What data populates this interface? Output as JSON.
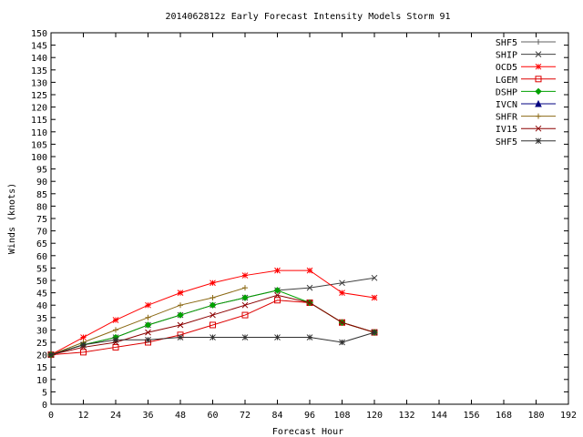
{
  "chart_data": {
    "type": "line",
    "title": "2014062812z Early Forecast Intensity Models Storm 91",
    "xlabel": "Forecast Hour",
    "ylabel": "Winds (knots)",
    "xlim": [
      0,
      192
    ],
    "ylim": [
      0,
      150
    ],
    "x_ticks": [
      0,
      12,
      24,
      36,
      48,
      60,
      72,
      84,
      96,
      108,
      120,
      132,
      144,
      156,
      168,
      180,
      192
    ],
    "y_ticks": [
      0,
      5,
      10,
      15,
      20,
      25,
      30,
      35,
      40,
      45,
      50,
      55,
      60,
      65,
      70,
      75,
      80,
      85,
      90,
      95,
      100,
      105,
      110,
      115,
      120,
      125,
      130,
      135,
      140,
      145,
      150
    ],
    "grid": false,
    "legend_position": "top-right",
    "series": [
      {
        "name": "SHF5",
        "color": "#606060",
        "marker": "plus",
        "x": [],
        "y": []
      },
      {
        "name": "SHIP",
        "color": "#404040",
        "marker": "cross",
        "x": [
          0,
          12,
          24,
          36,
          48,
          60,
          72,
          84,
          96,
          108,
          120
        ],
        "y": [
          20,
          24,
          27,
          32,
          36,
          40,
          43,
          46,
          47,
          49,
          51
        ]
      },
      {
        "name": "OCD5",
        "color": "#ff0000",
        "marker": "star",
        "x": [
          0,
          12,
          24,
          36,
          48,
          60,
          72,
          84,
          96,
          108,
          120
        ],
        "y": [
          20,
          27,
          34,
          40,
          45,
          49,
          52,
          54,
          54,
          45,
          43
        ]
      },
      {
        "name": "LGEM",
        "color": "#dd0000",
        "marker": "square",
        "x": [
          0,
          12,
          24,
          36,
          48,
          60,
          72,
          84,
          96,
          108,
          120
        ],
        "y": [
          20,
          21,
          23,
          25,
          28,
          32,
          36,
          42,
          41,
          33,
          29
        ]
      },
      {
        "name": "DSHP",
        "color": "#00a000",
        "marker": "diamond",
        "x": [
          0,
          12,
          24,
          36,
          48,
          60,
          72,
          84,
          96,
          108,
          120
        ],
        "y": [
          20,
          24,
          27,
          32,
          36,
          40,
          43,
          46,
          41,
          33,
          29
        ]
      },
      {
        "name": "IVCN",
        "color": "#000080",
        "marker": "triangle",
        "x": [],
        "y": []
      },
      {
        "name": "SHFR",
        "color": "#8b6914",
        "marker": "plus",
        "x": [
          0,
          12,
          24,
          36,
          48,
          60,
          72
        ],
        "y": [
          20,
          25,
          30,
          35,
          40,
          43,
          47
        ]
      },
      {
        "name": "IV15",
        "color": "#8b0000",
        "marker": "cross",
        "x": [
          0,
          12,
          24,
          36,
          48,
          60,
          72,
          84,
          96,
          108,
          120
        ],
        "y": [
          20,
          23,
          25,
          29,
          32,
          36,
          40,
          44,
          41,
          33,
          29
        ]
      },
      {
        "name": "SHF5",
        "color": "#303030",
        "marker": "star",
        "x": [
          0,
          12,
          24,
          36,
          48,
          60,
          72,
          84,
          96,
          108,
          120
        ],
        "y": [
          20,
          24,
          26,
          26,
          27,
          27,
          27,
          27,
          27,
          25,
          29
        ]
      }
    ]
  }
}
